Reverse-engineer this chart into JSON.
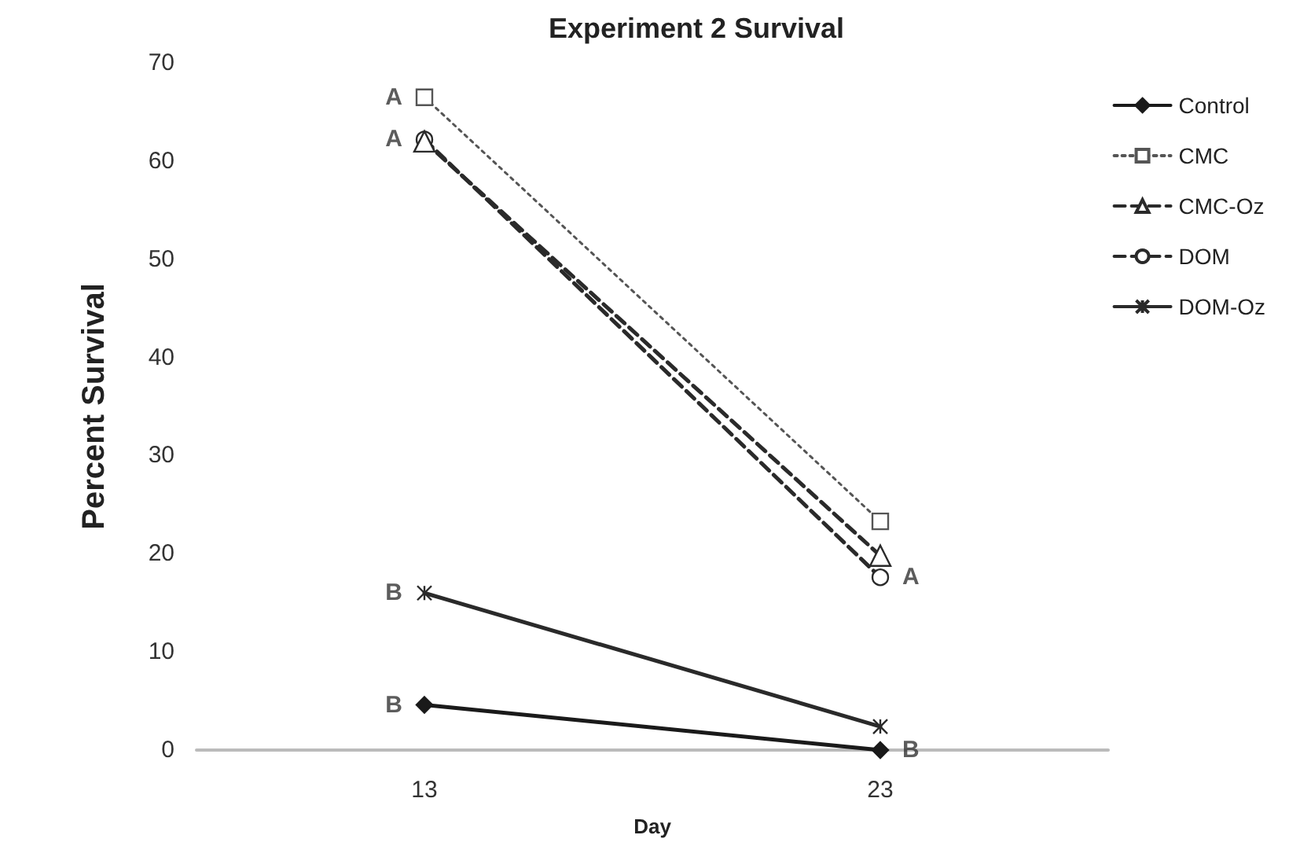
{
  "chart_data": {
    "type": "line",
    "title": "Experiment 2 Survival",
    "xlabel": "Day",
    "ylabel": "Percent Survival",
    "categories": [
      "13",
      "23"
    ],
    "series": [
      {
        "name": "Control",
        "color": "#1a1a1a",
        "values": [
          4.6,
          0
        ],
        "marker": "diamond",
        "line_style": "solid"
      },
      {
        "name": "CMC",
        "color": "#555555",
        "values": [
          66.5,
          23.3
        ],
        "marker": "square",
        "line_style": "dotted"
      },
      {
        "name": "CMC-Oz",
        "color": "#2a2a2a",
        "values": [
          62,
          19.8
        ],
        "marker": "triangle",
        "line_style": "dashed"
      },
      {
        "name": "DOM",
        "color": "#2a2a2a",
        "values": [
          62.2,
          17.6
        ],
        "marker": "circle",
        "line_style": "dashed"
      },
      {
        "name": "DOM-Oz",
        "color": "#2a2a2a",
        "values": [
          16,
          2.4
        ],
        "marker": "cross",
        "line_style": "solid"
      }
    ],
    "annotations": [
      {
        "text": "A",
        "x": "13",
        "y": 66.5
      },
      {
        "text": "A",
        "x": "13",
        "y": 62.2
      },
      {
        "text": "B",
        "x": "13",
        "y": 16
      },
      {
        "text": "B",
        "x": "13",
        "y": 4.6
      },
      {
        "text": "A",
        "x": "23",
        "y": 17.6
      },
      {
        "text": "B",
        "x": "23",
        "y": 0
      }
    ],
    "ylim": [
      0,
      70
    ],
    "yticks": [
      0,
      10,
      20,
      30,
      40,
      50,
      60,
      70
    ],
    "grid": false,
    "legend": "top right"
  }
}
